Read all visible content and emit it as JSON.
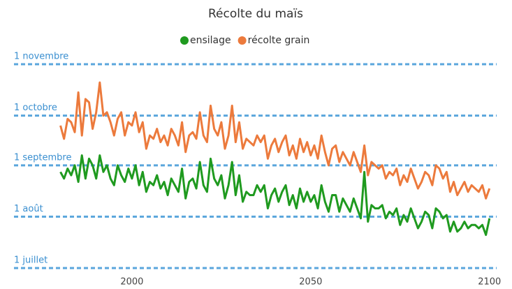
{
  "chart_data": {
    "type": "line",
    "title": "Récolte du maïs",
    "x": [
      1980,
      1981,
      1982,
      1983,
      1984,
      1985,
      1986,
      1987,
      1988,
      1989,
      1990,
      1991,
      1992,
      1993,
      1994,
      1995,
      1996,
      1997,
      1998,
      1999,
      2000,
      2001,
      2002,
      2003,
      2004,
      2005,
      2006,
      2007,
      2008,
      2009,
      2010,
      2011,
      2012,
      2013,
      2014,
      2015,
      2016,
      2017,
      2018,
      2019,
      2020,
      2021,
      2022,
      2023,
      2024,
      2025,
      2026,
      2027,
      2028,
      2029,
      2030,
      2031,
      2032,
      2033,
      2034,
      2035,
      2036,
      2037,
      2038,
      2039,
      2040,
      2041,
      2042,
      2043,
      2044,
      2045,
      2046,
      2047,
      2048,
      2049,
      2050,
      2051,
      2052,
      2053,
      2054,
      2055,
      2056,
      2057,
      2058,
      2059,
      2060,
      2061,
      2062,
      2063,
      2064,
      2065,
      2066,
      2067,
      2068,
      2069,
      2070,
      2071,
      2072,
      2073,
      2074,
      2075,
      2076,
      2077,
      2078,
      2079,
      2080,
      2081,
      2082,
      2083,
      2084,
      2085,
      2086,
      2087,
      2088,
      2089,
      2090,
      2091,
      2092,
      2093,
      2094,
      2095,
      2096,
      2097,
      2098,
      2099,
      2100
    ],
    "series": [
      {
        "name": "ensilage",
        "color": "#1f9a1f",
        "values": [
          240,
          236,
          242,
          238,
          244,
          234,
          250,
          236,
          248,
          244,
          236,
          250,
          240,
          244,
          236,
          232,
          244,
          238,
          234,
          242,
          236,
          244,
          232,
          240,
          228,
          234,
          232,
          238,
          230,
          234,
          226,
          236,
          232,
          228,
          242,
          224,
          234,
          236,
          230,
          246,
          232,
          228,
          248,
          236,
          232,
          238,
          224,
          232,
          246,
          226,
          238,
          222,
          228,
          226,
          226,
          232,
          228,
          232,
          218,
          226,
          230,
          222,
          228,
          232,
          220,
          226,
          218,
          230,
          222,
          228,
          222,
          226,
          218,
          232,
          222,
          216,
          226,
          226,
          216,
          224,
          220,
          216,
          224,
          218,
          212,
          240,
          210,
          220,
          218,
          218,
          220,
          212,
          216,
          214,
          218,
          208,
          214,
          210,
          218,
          212,
          206,
          210,
          216,
          214,
          206,
          218,
          216,
          212,
          214,
          204,
          210,
          204,
          206,
          210,
          206,
          208,
          208,
          206,
          208,
          202,
          212
        ]
      },
      {
        "name": "récolte grain",
        "color": "#ec7a3c",
        "values": [
          268,
          260,
          272,
          270,
          264,
          288,
          262,
          284,
          282,
          266,
          276,
          294,
          274,
          276,
          270,
          262,
          272,
          276,
          262,
          270,
          268,
          276,
          264,
          270,
          254,
          262,
          260,
          266,
          258,
          262,
          256,
          266,
          262,
          256,
          270,
          252,
          262,
          264,
          260,
          276,
          262,
          258,
          280,
          266,
          262,
          270,
          254,
          262,
          280,
          258,
          270,
          254,
          260,
          258,
          256,
          262,
          258,
          262,
          248,
          256,
          260,
          252,
          258,
          262,
          250,
          256,
          248,
          260,
          252,
          258,
          250,
          256,
          248,
          262,
          252,
          244,
          254,
          256,
          246,
          252,
          248,
          244,
          252,
          246,
          240,
          256,
          238,
          246,
          244,
          242,
          244,
          236,
          240,
          238,
          242,
          232,
          238,
          234,
          242,
          236,
          230,
          234,
          240,
          238,
          232,
          244,
          242,
          236,
          240,
          228,
          234,
          226,
          230,
          234,
          228,
          232,
          230,
          228,
          232,
          224,
          230
        ]
      }
    ],
    "xlim": [
      1967,
      2102
    ],
    "xticks": [
      2000,
      2050,
      2100
    ],
    "ylim": [
      182,
      305
    ],
    "yticks": [
      {
        "value": 182,
        "label": "1 juillet"
      },
      {
        "value": 213,
        "label": "1 août"
      },
      {
        "value": 244,
        "label": "1 septembre"
      },
      {
        "value": 274,
        "label": "1 octobre"
      },
      {
        "value": 305,
        "label": "1 novembre"
      }
    ],
    "grid": true,
    "legend": "top"
  }
}
